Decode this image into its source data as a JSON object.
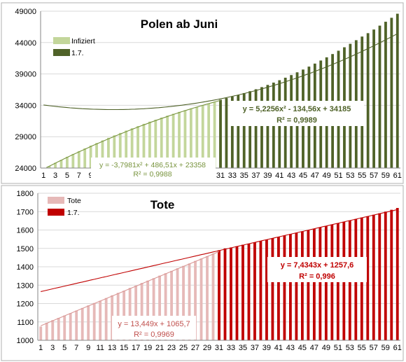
{
  "chart_data": [
    {
      "type": "bar",
      "title": "Polen ab Juni",
      "xlabel": "",
      "ylabel": "",
      "ylim": [
        24000,
        49000
      ],
      "yticks": [
        24000,
        29000,
        34000,
        39000,
        44000,
        49000
      ],
      "x_tick_labels": [
        "1",
        "3",
        "5",
        "7",
        "9",
        "11",
        "13",
        "15",
        "17",
        "19",
        "21",
        "23",
        "25",
        "27",
        "29",
        "31",
        "33",
        "35",
        "37",
        "39",
        "41",
        "43",
        "45",
        "47",
        "49",
        "51",
        "53",
        "55",
        "57",
        "59",
        "61"
      ],
      "legend_position": "top-left",
      "grid": true,
      "series": [
        {
          "name": "Infiziert",
          "color": "#c3d69b",
          "x": [
            1,
            2,
            3,
            4,
            5,
            6,
            7,
            8,
            9,
            10,
            11,
            12,
            13,
            14,
            15,
            16,
            17,
            18,
            19,
            20,
            21,
            22,
            23,
            24,
            25,
            26,
            27,
            28,
            29,
            30,
            31
          ],
          "values": [
            23880,
            24300,
            24850,
            25300,
            25800,
            26250,
            26700,
            27150,
            27580,
            28000,
            28420,
            28820,
            29220,
            29600,
            29980,
            30350,
            30700,
            31050,
            31400,
            31720,
            32050,
            32360,
            32660,
            32950,
            33230,
            33500,
            33760,
            34010,
            34250,
            34480,
            34700
          ]
        },
        {
          "name": "1.7.",
          "color": "#4f6228",
          "x": [
            31,
            32,
            33,
            34,
            35,
            36,
            37,
            38,
            39,
            40,
            41,
            42,
            43,
            44,
            45,
            46,
            47,
            48,
            49,
            50,
            51,
            52,
            53,
            54,
            55,
            56,
            57,
            58,
            59,
            60,
            61
          ],
          "values": [
            34900,
            35150,
            35400,
            35650,
            35950,
            36250,
            36560,
            36900,
            37250,
            37620,
            38000,
            38400,
            38820,
            39260,
            39700,
            40170,
            40650,
            41140,
            41650,
            42170,
            42700,
            43250,
            43800,
            44380,
            44960,
            45500,
            46080,
            46700,
            47320,
            47950,
            48600
          ]
        }
      ],
      "trendlines": [
        {
          "equation": "y = -3,7981x² + 486,51x + 23358",
          "r2": "R² = 0,9988",
          "color": "#77933c"
        },
        {
          "equation": "y = 5,2256x² - 134,56x + 34185",
          "r2": "R² = 0,9989",
          "color": "#4f6228"
        }
      ]
    },
    {
      "type": "bar",
      "title": "Tote",
      "xlabel": "",
      "ylabel": "",
      "ylim": [
        1000,
        1800
      ],
      "yticks": [
        1000,
        1100,
        1200,
        1300,
        1400,
        1500,
        1600,
        1700,
        1800
      ],
      "x_tick_labels": [
        "1",
        "3",
        "5",
        "7",
        "9",
        "11",
        "13",
        "15",
        "17",
        "19",
        "21",
        "23",
        "25",
        "27",
        "29",
        "31",
        "33",
        "35",
        "37",
        "39",
        "41",
        "43",
        "45",
        "47",
        "49",
        "51",
        "53",
        "55",
        "57",
        "59",
        "61"
      ],
      "legend_position": "top-left",
      "grid": true,
      "series": [
        {
          "name": "Tote",
          "color": "#e6b9b8",
          "x": [
            1,
            2,
            3,
            4,
            5,
            6,
            7,
            8,
            9,
            10,
            11,
            12,
            13,
            14,
            15,
            16,
            17,
            18,
            19,
            20,
            21,
            22,
            23,
            24,
            25,
            26,
            27,
            28,
            29,
            30,
            31
          ],
          "values": [
            1075,
            1095,
            1110,
            1122,
            1135,
            1148,
            1162,
            1176,
            1190,
            1203,
            1215,
            1230,
            1245,
            1258,
            1270,
            1285,
            1298,
            1312,
            1325,
            1338,
            1352,
            1365,
            1378,
            1392,
            1405,
            1418,
            1432,
            1445,
            1458,
            1472,
            1485
          ]
        },
        {
          "name": "1.7.",
          "color": "#c00000",
          "x": [
            31,
            32,
            33,
            34,
            35,
            36,
            37,
            38,
            39,
            40,
            41,
            42,
            43,
            44,
            45,
            46,
            47,
            48,
            49,
            50,
            51,
            52,
            53,
            54,
            55,
            56,
            57,
            58,
            59,
            60,
            61
          ],
          "values": [
            1490,
            1500,
            1505,
            1512,
            1520,
            1526,
            1533,
            1540,
            1548,
            1555,
            1562,
            1570,
            1578,
            1585,
            1592,
            1600,
            1607,
            1614,
            1622,
            1630,
            1637,
            1645,
            1652,
            1660,
            1668,
            1675,
            1683,
            1691,
            1700,
            1710,
            1720
          ]
        }
      ],
      "trendlines": [
        {
          "equation": "y = 13,449x + 1065,7",
          "r2": "R² = 0,9969",
          "color": "#d99694"
        },
        {
          "equation": "y = 7,4343x + 1257,6",
          "r2": "R² = 0,996",
          "color": "#c00000"
        }
      ]
    }
  ]
}
